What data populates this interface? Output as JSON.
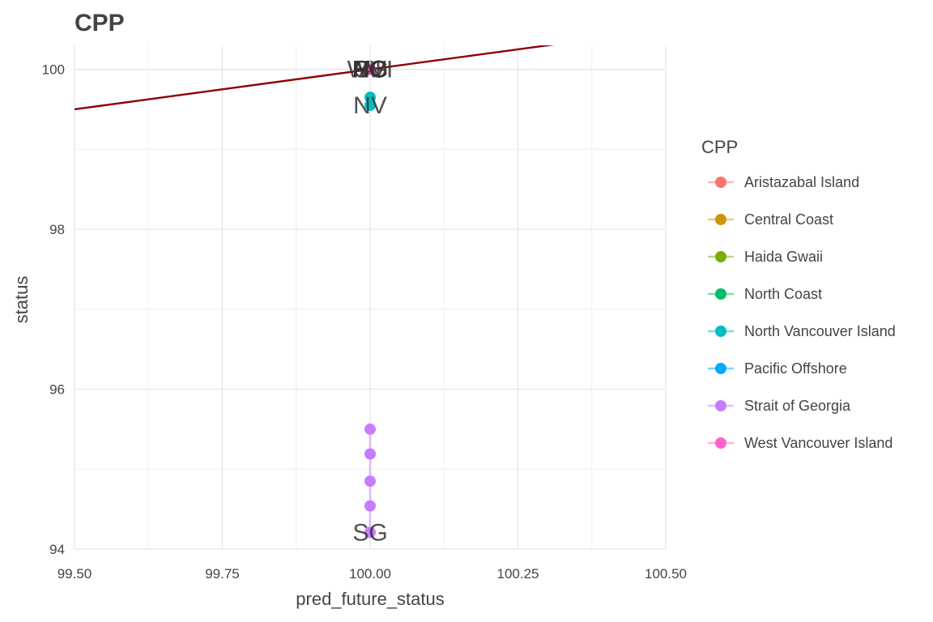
{
  "title": "CPP",
  "chart_data": {
    "type": "scatter",
    "title": "CPP",
    "xlabel": "pred_future_status",
    "ylabel": "status",
    "xlim": [
      99.5,
      100.5
    ],
    "ylim": [
      94,
      100.3
    ],
    "x_ticks": [
      99.5,
      99.75,
      100.0,
      100.25,
      100.5
    ],
    "x_tick_labels": [
      "99.50",
      "99.75",
      "100.00",
      "100.25",
      "100.50"
    ],
    "y_ticks": [
      94,
      96,
      98,
      100
    ],
    "y_tick_labels": [
      "94",
      "96",
      "98",
      "100"
    ],
    "grid": true,
    "legend_title": "CPP",
    "legend_position": "right",
    "reference_line": {
      "slope": 1,
      "intercept": 0,
      "color": "#8B0000"
    },
    "series": [
      {
        "name": "Aristazabal Island",
        "color": "#F8766D",
        "points": [
          [
            100.0,
            100.0
          ]
        ]
      },
      {
        "name": "Central Coast",
        "color": "#CD9600",
        "points": [
          [
            100.0,
            100.0
          ]
        ]
      },
      {
        "name": "Haida Gwaii",
        "color": "#7CAE00",
        "points": [
          [
            100.0,
            100.0
          ]
        ]
      },
      {
        "name": "North Coast",
        "color": "#00BE67",
        "points": [
          [
            100.0,
            100.0
          ]
        ]
      },
      {
        "name": "North Vancouver Island",
        "color": "#00BFC4",
        "points": [
          [
            100.0,
            99.65
          ],
          [
            100.0,
            99.55
          ]
        ]
      },
      {
        "name": "Pacific Offshore",
        "color": "#00A9FF",
        "points": [
          [
            100.0,
            100.0
          ]
        ]
      },
      {
        "name": "Strait of Georgia",
        "color": "#C77CFF",
        "points": [
          [
            100.0,
            95.5
          ],
          [
            100.0,
            95.19
          ],
          [
            100.0,
            94.85
          ],
          [
            100.0,
            94.54
          ],
          [
            100.0,
            94.21
          ]
        ]
      },
      {
        "name": "West Vancouver Island",
        "color": "#FF61CC",
        "points": [
          [
            100.0,
            100.0
          ]
        ]
      }
    ],
    "annotations": [
      {
        "text": "AI",
        "x": 100.0,
        "y": 100.0
      },
      {
        "text": "CC",
        "x": 100.0,
        "y": 100.0
      },
      {
        "text": "HG",
        "x": 100.0,
        "y": 100.0
      },
      {
        "text": "NC",
        "x": 100.0,
        "y": 100.0
      },
      {
        "text": "PO",
        "x": 100.0,
        "y": 100.0
      },
      {
        "text": "WVI",
        "x": 100.0,
        "y": 100.0
      },
      {
        "text": "NV",
        "x": 100.0,
        "y": 99.55
      },
      {
        "text": "SG",
        "x": 100.0,
        "y": 94.21
      }
    ]
  }
}
